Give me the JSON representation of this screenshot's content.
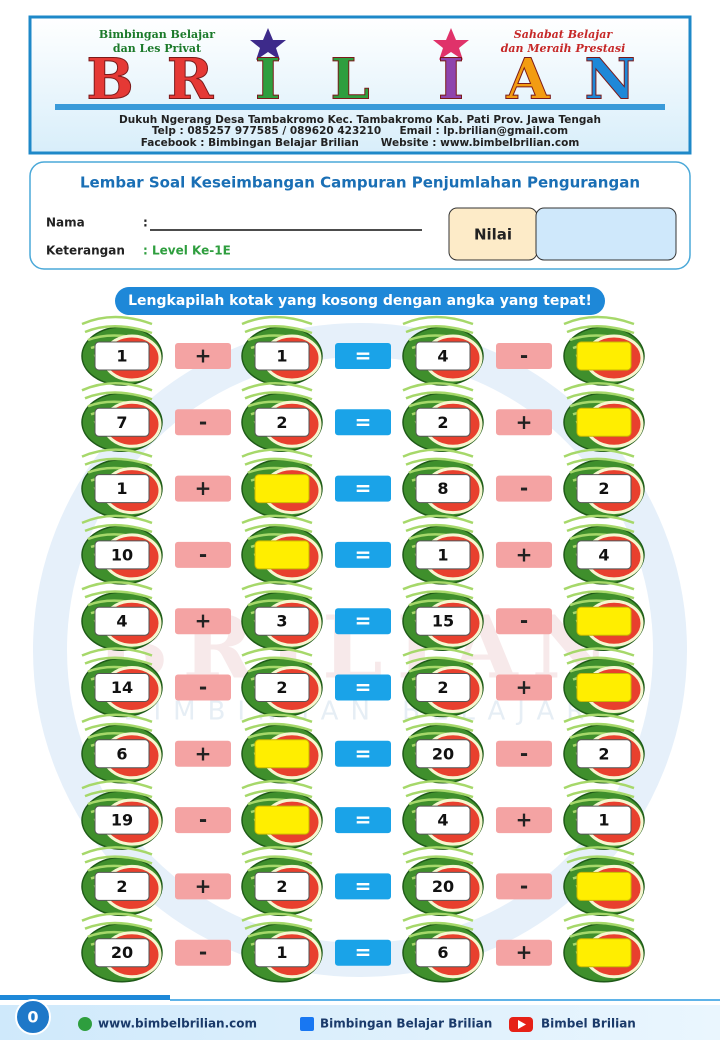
{
  "header": {
    "tagline_left": [
      "Bimbingan Belajar",
      "dan Les Privat"
    ],
    "tagline_right": [
      "Sahabat Belajar",
      "dan Meraih Prestasi"
    ],
    "logo": [
      "B",
      "R",
      "I",
      "L",
      "I",
      "A",
      "N"
    ],
    "address": "Dukuh Ngerang Desa Tambakromo Kec. Tambakromo Kab. Pati Prov. Jawa Tengah",
    "contact": "Telp : 085257 977585 / 089620 423210     Email : lp.brilian@gmail.com",
    "social": "Facebook : Bimbingan Belajar Brilian      Website : www.bimbelbrilian.com"
  },
  "form": {
    "title": "Lembar Soal Keseimbangan Campuran Penjumlahan Pengurangan",
    "name_label": "Nama",
    "name_sep": ":",
    "note_label": "Keterangan",
    "note_value": ": Level Ke-1E",
    "score_label": "Nilai"
  },
  "instruction": "Lengkapilah kotak yang kosong dengan angka yang tepat!",
  "watermark": {
    "logo": "BRILIAN",
    "subtitle": "BIMBINGAN BELAJAR"
  },
  "rows": [
    [
      1,
      "+",
      1,
      "=",
      4,
      "-",
      null
    ],
    [
      7,
      "-",
      2,
      "=",
      2,
      "+",
      null
    ],
    [
      1,
      "+",
      null,
      "=",
      8,
      "-",
      2
    ],
    [
      10,
      "-",
      null,
      "=",
      1,
      "+",
      4
    ],
    [
      4,
      "+",
      3,
      "=",
      15,
      "-",
      null
    ],
    [
      14,
      "-",
      2,
      "=",
      2,
      "+",
      null
    ],
    [
      6,
      "+",
      null,
      "=",
      20,
      "-",
      2
    ],
    [
      19,
      "-",
      null,
      "=",
      4,
      "+",
      1
    ],
    [
      2,
      "+",
      2,
      "=",
      20,
      "-",
      null
    ],
    [
      20,
      "-",
      1,
      "=",
      6,
      "+",
      null
    ]
  ],
  "footer": {
    "page": 0,
    "website": "www.bimbelbrilian.com",
    "facebook": "Bimbingan Belajar Brilian",
    "youtube": "Bimbel Brilian"
  }
}
